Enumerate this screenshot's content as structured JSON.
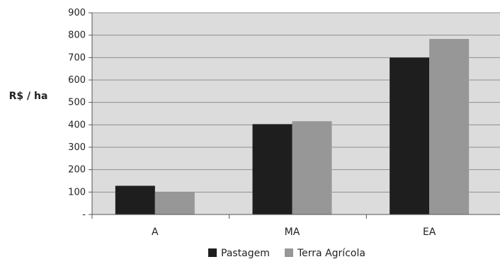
{
  "chart_data": {
    "type": "bar",
    "categories": [
      "A",
      "MA",
      "EA"
    ],
    "series": [
      {
        "name": "Pastagem",
        "values": [
          128,
          403,
          700
        ],
        "color": "#1e1e1e"
      },
      {
        "name": "Terra Agrícola",
        "values": [
          100,
          416,
          783
        ],
        "color": "#979797"
      }
    ],
    "ylabel": "R$ / ha",
    "ylim": [
      0,
      900
    ],
    "yticks": [
      0,
      100,
      200,
      300,
      400,
      500,
      600,
      700,
      800,
      900
    ],
    "ytick_labels": [
      "-",
      "100",
      "200",
      "300",
      "400",
      "500",
      "600",
      "700",
      "800",
      "900"
    ],
    "grid": true,
    "plot_background": "#dcdcdc",
    "legend_position": "bottom-center"
  }
}
